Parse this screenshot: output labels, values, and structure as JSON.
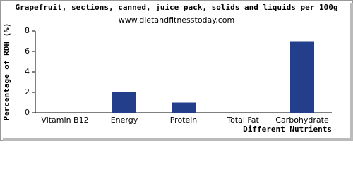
{
  "chart_data": {
    "type": "bar",
    "title": "Grapefruit, sections, canned, juice pack, solids and liquids per 100g",
    "subtitle": "www.dietandfitnesstoday.com",
    "y_label": "Percentage of RDH (%)",
    "x_label": "Different Nutrients",
    "categories": [
      "Vitamin B12",
      "Energy",
      "Protein",
      "Total Fat",
      "Carbohydrate"
    ],
    "values": [
      0,
      2,
      1,
      0,
      7
    ],
    "color": "#233f8b",
    "ylim": [
      0,
      8
    ],
    "yticks": [
      0,
      2,
      4,
      6,
      8
    ],
    "grid": false
  }
}
